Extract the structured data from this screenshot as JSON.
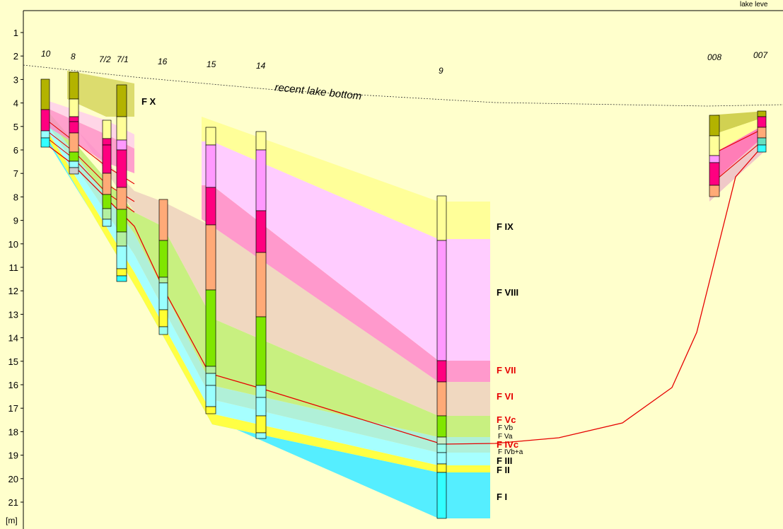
{
  "header": {
    "lake_level_label": "lake leve"
  },
  "axis": {
    "unit": "[m]",
    "ticks": [
      "1",
      "2",
      "3",
      "4",
      "5",
      "6",
      "7",
      "8",
      "9",
      "10",
      "11",
      "12",
      "13",
      "14",
      "15",
      "16",
      "17",
      "18",
      "19",
      "20",
      "21"
    ]
  },
  "surface_label": "recent lake bottom",
  "cores": [
    {
      "id": "10"
    },
    {
      "id": "8"
    },
    {
      "id": "7/2"
    },
    {
      "id": "7/1"
    },
    {
      "id": "16"
    },
    {
      "id": "15"
    },
    {
      "id": "14"
    },
    {
      "id": "9"
    },
    {
      "id": "008"
    },
    {
      "id": "007"
    }
  ],
  "facies": [
    {
      "id": "fx",
      "label": "F X",
      "color": "#b3b300",
      "label_color": "#000000"
    },
    {
      "id": "fix",
      "label": "F IX",
      "color": "#ffff99",
      "label_color": "#000000"
    },
    {
      "id": "fviii",
      "label": "F VIII",
      "color": "#ff99ff",
      "label_color": "#000000"
    },
    {
      "id": "fvii",
      "label": "F VII",
      "color": "#ff0080",
      "label_color": "#e60000"
    },
    {
      "id": "fvi",
      "label": "F VI",
      "color": "#ffaa77",
      "label_color": "#e60000"
    },
    {
      "id": "fvc",
      "label": "F Vc",
      "color": "#80e600",
      "label_color": "#e60000"
    },
    {
      "id": "fvb",
      "label": "F Vb",
      "color": "#b3f0a0",
      "label_color": "#000000"
    },
    {
      "id": "fva",
      "label": "F Va",
      "color": "#c8f0c8",
      "label_color": "#000000"
    },
    {
      "id": "fivc",
      "label": "F IVc",
      "color": "#66e0c0",
      "label_color": "#e60000"
    },
    {
      "id": "fivba",
      "label": "F IVb+a",
      "color": "#99ffee",
      "label_color": "#000000"
    },
    {
      "id": "fiii",
      "label": "F III",
      "color": "#99ffff",
      "label_color": "#000000"
    },
    {
      "id": "fii",
      "label": "F II",
      "color": "#ffff33",
      "label_color": "#000000"
    },
    {
      "id": "fi",
      "label": "F I",
      "color": "#33ffff",
      "label_color": "#000000"
    }
  ]
}
